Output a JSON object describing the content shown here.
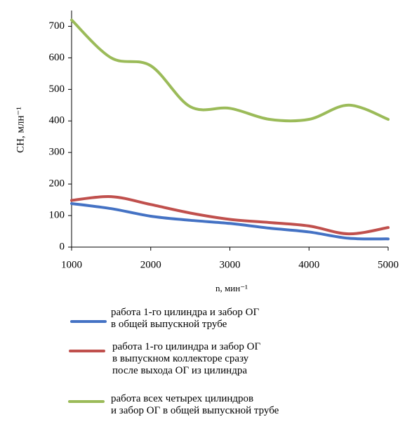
{
  "chart_data": {
    "type": "line",
    "ylabel": "СН, млн⁻¹",
    "xlabel": "n, мин⁻¹",
    "x": [
      1000,
      1500,
      2000,
      2500,
      3000,
      3500,
      4000,
      4500,
      5000
    ],
    "series": [
      {
        "name": "работа 1-го цилиндра и забор ОГ\nв общей выпускной трубе",
        "color": "#4472c4",
        "values": [
          138,
          122,
          98,
          85,
          75,
          60,
          48,
          28,
          26
        ]
      },
      {
        "name": "работа 1-го цилиндра и забор ОГ\nв выпускном коллекторе сразу\nпосле выхода ОГ из цилиндра",
        "color": "#c0504d",
        "values": [
          148,
          160,
          135,
          108,
          88,
          78,
          67,
          42,
          62
        ]
      },
      {
        "name": "работа всех четырех цилиндров\nи забор ОГ в общей выпускной трубе",
        "color": "#9bbb59",
        "values": [
          720,
          600,
          575,
          445,
          440,
          405,
          405,
          450,
          405
        ]
      }
    ],
    "xlim": [
      1000,
      5000
    ],
    "xticks": [
      1000,
      2000,
      3000,
      4000,
      5000
    ],
    "ylim": [
      0,
      750
    ],
    "yticks": [
      0,
      100,
      200,
      300,
      400,
      500,
      600,
      700
    ],
    "grid": false
  }
}
